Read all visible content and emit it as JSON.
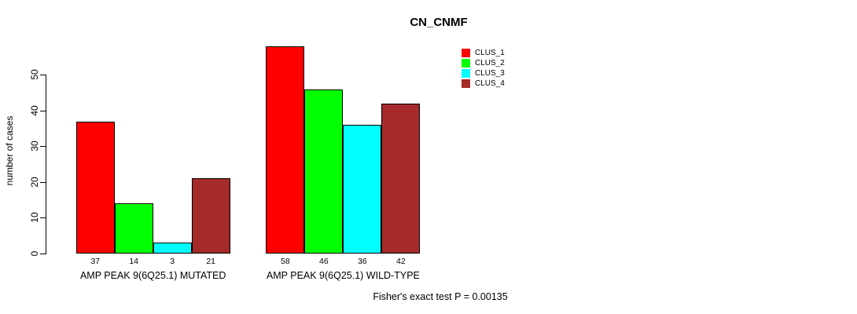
{
  "chart_data": {
    "type": "bar",
    "title": "CN_CNMF",
    "xlabel": "",
    "ylabel": "number of cases",
    "ylim": [
      0,
      58
    ],
    "yticks": [
      0,
      10,
      20,
      30,
      40,
      50
    ],
    "grid": false,
    "legend_position": "top-right",
    "bar_border_color": "#000000",
    "categories": [
      "AMP PEAK 9(6Q25.1) MUTATED",
      "AMP PEAK 9(6Q25.1) WILD-TYPE"
    ],
    "series": [
      {
        "name": "CLUS_1",
        "color": "#FF0000",
        "values": [
          37,
          58
        ]
      },
      {
        "name": "CLUS_2",
        "color": "#00FF00",
        "values": [
          14,
          46
        ]
      },
      {
        "name": "CLUS_3",
        "color": "#00FFFF",
        "values": [
          3,
          36
        ]
      },
      {
        "name": "CLUS_4",
        "color": "#A52A2A",
        "values": [
          21,
          42
        ]
      }
    ],
    "bar_value_labels": [
      [
        "37",
        "14",
        "3",
        "21"
      ],
      [
        "58",
        "46",
        "36",
        "42"
      ]
    ],
    "annotation": "Fisher's exact test P = 0.00135"
  }
}
